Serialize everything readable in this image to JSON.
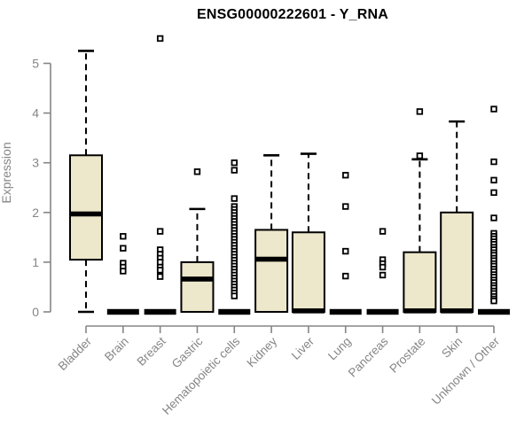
{
  "chart_data": {
    "type": "boxplot",
    "title": "ENSG00000222601 - Y_RNA",
    "ylabel": "Expression",
    "xlabel": "",
    "ylim": [
      0,
      5.6
    ],
    "yticks": [
      0,
      1,
      2,
      3,
      4,
      5
    ],
    "grid": false,
    "legend": "none",
    "colors": {
      "box_fill": "#EDE7CB",
      "box_border": "#000000",
      "median": "#000000",
      "whisker": "#000000",
      "outlier_stroke": "#000000",
      "outlier_fill": "#ffffff",
      "axis": "#858585",
      "title": "#000000",
      "background": "#ffffff"
    },
    "categories": [
      "Bladder",
      "Brain",
      "Breast",
      "Gastric",
      "Hematopoietic cells",
      "Kidney",
      "Liver",
      "Lung",
      "Pancreas",
      "Prostate",
      "Skin",
      "Unknown / Other"
    ],
    "series": [
      {
        "label": "Bladder",
        "q1": 1.05,
        "median": 1.97,
        "q3": 3.15,
        "lo": 0.0,
        "hi": 5.25,
        "outliers": []
      },
      {
        "label": "Brain",
        "q1": 0,
        "median": 0,
        "q3": 0,
        "lo": 0,
        "hi": 0,
        "outliers": [
          1.52,
          1.28,
          0.98,
          0.9,
          0.82
        ]
      },
      {
        "label": "Breast",
        "q1": 0,
        "median": 0,
        "q3": 0,
        "lo": 0,
        "hi": 0,
        "outliers": [
          5.5,
          1.62,
          1.25,
          1.16,
          1.08,
          1.0,
          0.9,
          0.84,
          0.71
        ]
      },
      {
        "label": "Gastric",
        "q1": 0,
        "median": 0.66,
        "q3": 1.0,
        "lo": 0,
        "hi": 2.07,
        "outliers": [
          2.82
        ]
      },
      {
        "label": "Hematopoietic cells",
        "q1": 0,
        "median": 0,
        "q3": 0,
        "lo": 0,
        "hi": 0,
        "outliers": [
          3.0,
          2.85,
          2.28,
          2.12,
          2.06,
          2.0,
          1.94,
          1.88,
          1.82,
          1.76,
          1.7,
          1.64,
          1.58,
          1.52,
          1.46,
          1.4,
          1.34,
          1.28,
          1.22,
          1.16,
          1.1,
          1.04,
          0.98,
          0.92,
          0.86,
          0.8,
          0.74,
          0.68,
          0.62,
          0.56,
          0.5,
          0.44,
          0.38,
          0.32
        ]
      },
      {
        "label": "Kidney",
        "q1": 0,
        "median": 1.06,
        "q3": 1.65,
        "lo": 0,
        "hi": 3.15,
        "outliers": []
      },
      {
        "label": "Liver",
        "q1": 0,
        "median": 0.02,
        "q3": 1.6,
        "lo": 0,
        "hi": 3.18,
        "outliers": []
      },
      {
        "label": "Lung",
        "q1": 0,
        "median": 0,
        "q3": 0,
        "lo": 0,
        "hi": 0,
        "outliers": [
          2.75,
          2.12,
          1.22,
          0.72
        ]
      },
      {
        "label": "Pancreas",
        "q1": 0,
        "median": 0,
        "q3": 0,
        "lo": 0,
        "hi": 0,
        "outliers": [
          1.62,
          1.05,
          0.97,
          0.9,
          0.74
        ]
      },
      {
        "label": "Prostate",
        "q1": 0,
        "median": 0.02,
        "q3": 1.2,
        "lo": 0,
        "hi": 3.07,
        "outliers": [
          4.03,
          3.14
        ]
      },
      {
        "label": "Skin",
        "q1": 0,
        "median": 0.02,
        "q3": 2.0,
        "lo": 0,
        "hi": 3.83,
        "outliers": []
      },
      {
        "label": "Unknown / Other",
        "q1": 0,
        "median": 0,
        "q3": 0,
        "lo": 0,
        "hi": 0,
        "outliers": [
          4.08,
          3.02,
          2.65,
          2.4,
          1.89,
          1.58,
          1.52,
          1.47,
          1.41,
          1.36,
          1.3,
          1.25,
          1.19,
          1.14,
          1.08,
          1.03,
          0.97,
          0.92,
          0.86,
          0.81,
          0.75,
          0.7,
          0.64,
          0.59,
          0.53,
          0.48,
          0.42,
          0.37,
          0.31,
          0.26,
          0.22
        ]
      }
    ]
  }
}
